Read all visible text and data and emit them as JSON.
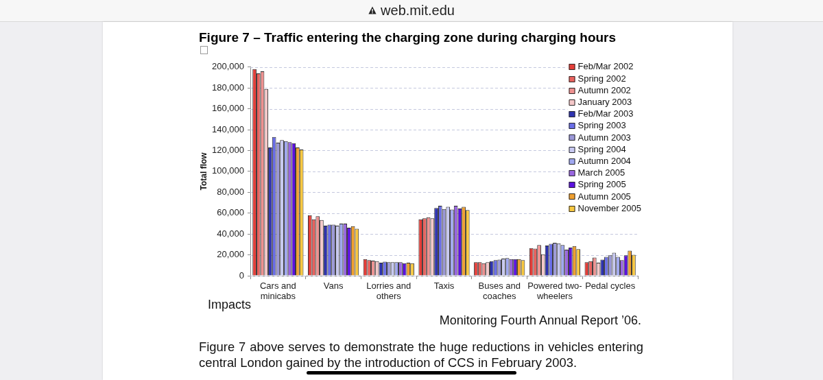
{
  "chart_data": {
    "type": "bar",
    "title": "Figure 7 – Traffic entering the charging zone during charging hours",
    "ylabel": "Total flow",
    "categories": [
      "Cars and minicabs",
      "Vans",
      "Lorries and others",
      "Taxis",
      "Buses and coaches",
      "Powered two-wheelers",
      "Pedal cycles"
    ],
    "series": [
      {
        "name": "Feb/Mar 2002",
        "color": "#e53e39",
        "values": [
          198000,
          58000,
          16000,
          54000,
          13000,
          26500,
          13000
        ]
      },
      {
        "name": "Spring 2002",
        "color": "#e8625e",
        "values": [
          194000,
          54000,
          15000,
          55000,
          13000,
          26000,
          14000
        ]
      },
      {
        "name": "Autumn 2002",
        "color": "#ee9190",
        "values": [
          196000,
          57000,
          14500,
          56000,
          12000,
          29500,
          17500
        ]
      },
      {
        "name": "January 2003",
        "color": "#f5c8c9",
        "values": [
          179000,
          53500,
          14000,
          55000,
          13000,
          20500,
          12500
        ]
      },
      {
        "name": "Feb/Mar 2003",
        "color": "#2e33b0",
        "values": [
          123000,
          48000,
          12500,
          65000,
          14000,
          29000,
          15500
        ]
      },
      {
        "name": "Spring 2003",
        "color": "#6a6ee8",
        "values": [
          133000,
          49000,
          13500,
          67000,
          15000,
          30500,
          18000
        ]
      },
      {
        "name": "Autumn 2003",
        "color": "#9b98d8",
        "values": [
          127500,
          49000,
          13000,
          64000,
          15500,
          31500,
          19500
        ]
      },
      {
        "name": "Spring 2004",
        "color": "#c8c9f1",
        "values": [
          130000,
          48000,
          13000,
          66000,
          16500,
          31000,
          22000
        ]
      },
      {
        "name": "Autumn 2004",
        "color": "#a0a8f0",
        "values": [
          129000,
          50000,
          13000,
          63500,
          17000,
          29500,
          18000
        ]
      },
      {
        "name": "March 2005",
        "color": "#9966e0",
        "values": [
          128000,
          50000,
          13000,
          67000,
          16000,
          25000,
          15000
        ]
      },
      {
        "name": "Spring 2005",
        "color": "#5b10e0",
        "values": [
          127000,
          46000,
          12000,
          64500,
          16000,
          27000,
          19500
        ]
      },
      {
        "name": "Autumn 2005",
        "color": "#f0a030",
        "values": [
          123000,
          47500,
          12500,
          66000,
          16000,
          28500,
          24000
        ]
      },
      {
        "name": "November 2005",
        "color": "#f8c840",
        "values": [
          121000,
          45000,
          12000,
          63000,
          15000,
          25500,
          20000
        ]
      }
    ],
    "ylim": [
      0,
      200000
    ],
    "yticks": [
      {
        "value": 0,
        "label": "0"
      },
      {
        "value": 20000,
        "label": "20,000"
      },
      {
        "value": 40000,
        "label": "40,000"
      },
      {
        "value": 60000,
        "label": "60,000"
      },
      {
        "value": 80000,
        "label": "80,000"
      },
      {
        "value": 100000,
        "label": "100,000"
      },
      {
        "value": 120000,
        "label": "120,000"
      },
      {
        "value": 140000,
        "label": "140,000"
      },
      {
        "value": 160000,
        "label": "160,000"
      },
      {
        "value": 180000,
        "label": "180,000"
      },
      {
        "value": 200000,
        "label": "200,000"
      }
    ],
    "grid": "y",
    "legend": "top right",
    "annotations": [
      "web.mit.edu",
      "Impacts",
      "Monitoring Fourth Annual Report ’06.",
      "Figure 7 above serves to demonstrate the huge reductions in vehicles entering central London gained by the introduction of CCS in February 2003."
    ]
  }
}
